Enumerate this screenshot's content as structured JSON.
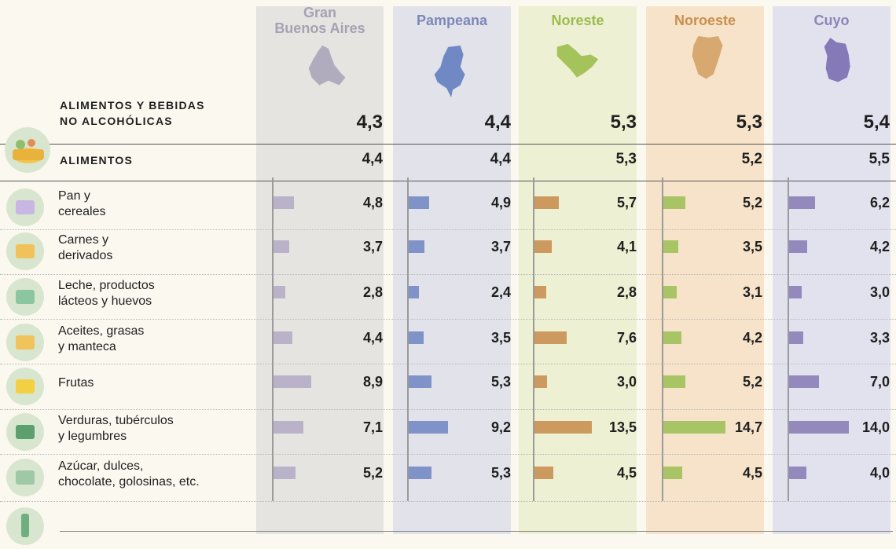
{
  "colors": {
    "background": "#fbf8ef",
    "col_bg": [
      "#e6e4e0",
      "#e2e3ea",
      "#edf0d2",
      "#f6e3c9",
      "#e2e2ee"
    ],
    "header_text": [
      "#a6a1b3",
      "#7d88b8",
      "#9dbb4e",
      "#c98f4e",
      "#8b85b8"
    ],
    "bar": [
      "#b9b2c8",
      "#8093c8",
      "#cc9a5e",
      "#a9c465",
      "#9389bd"
    ],
    "map": [
      "#b1acbd",
      "#7088c3",
      "#a4c35a",
      "#d7a870",
      "#8579b8"
    ]
  },
  "regions": [
    {
      "name": "Gran\nBuenos Aires",
      "map_icon": "gba-map-icon"
    },
    {
      "name": "Pampeana",
      "map_icon": "pampeana-map-icon"
    },
    {
      "name": "Noreste",
      "map_icon": "noreste-map-icon"
    },
    {
      "name": "Noroeste",
      "map_icon": "noroeste-map-icon"
    },
    {
      "name": "Cuyo",
      "map_icon": "cuyo-map-icon"
    }
  ],
  "summary": {
    "group_label": "ALIMENTOS Y BEBIDAS\nNO ALCOHÓLICAS",
    "group_values": [
      "4,3",
      "4,4",
      "5,3",
      "5,3",
      "5,4"
    ],
    "food_label": "ALIMENTOS",
    "food_values": [
      "4,4",
      "4,4",
      "5,3",
      "5,2",
      "5,5"
    ]
  },
  "chart_data": {
    "type": "bar",
    "orientation": "horizontal",
    "categories": [
      "Pan y\ncereales",
      "Carnes y\nderivados",
      "Leche, productos\nlácteos y huevos",
      "Aceites, grasas\ny manteca",
      "Frutas",
      "Verduras, tubérculos\ny legumbres",
      "Azúcar, dulces,\nchocolate, golosinas, etc."
    ],
    "category_icons": [
      "bread-icon",
      "meat-icon",
      "milk-icon",
      "oil-icon",
      "banana-icon",
      "vegetables-icon",
      "sweets-icon"
    ],
    "series": [
      {
        "name": "Gran Buenos Aires",
        "values": [
          4.8,
          3.7,
          2.8,
          4.4,
          8.9,
          7.1,
          5.2
        ],
        "labels": [
          "4,8",
          "3,7",
          "2,8",
          "4,4",
          "8,9",
          "7,1",
          "5,2"
        ]
      },
      {
        "name": "Pampeana",
        "values": [
          4.9,
          3.7,
          2.4,
          3.5,
          5.3,
          9.2,
          5.3
        ],
        "labels": [
          "4,9",
          "3,7",
          "2,4",
          "3,5",
          "5,3",
          "9,2",
          "5,3"
        ]
      },
      {
        "name": "Noreste",
        "values": [
          5.7,
          4.1,
          2.8,
          7.6,
          3.0,
          13.5,
          4.5
        ],
        "labels": [
          "5,7",
          "4,1",
          "2,8",
          "7,6",
          "3,0",
          "13,5",
          "4,5"
        ]
      },
      {
        "name": "Noroeste",
        "values": [
          5.2,
          3.5,
          3.1,
          4.2,
          5.2,
          14.7,
          4.5
        ],
        "labels": [
          "5,2",
          "3,5",
          "3,1",
          "4,2",
          "5,2",
          "14,7",
          "4,5"
        ]
      },
      {
        "name": "Cuyo",
        "values": [
          6.2,
          4.2,
          3.0,
          3.3,
          7.0,
          14.0,
          4.0
        ],
        "labels": [
          "6,2",
          "4,2",
          "3,0",
          "3,3",
          "7,0",
          "14,0",
          "4,0"
        ]
      }
    ],
    "xlim": [
      0,
      15
    ]
  },
  "footer_icon": "bottle-icon"
}
